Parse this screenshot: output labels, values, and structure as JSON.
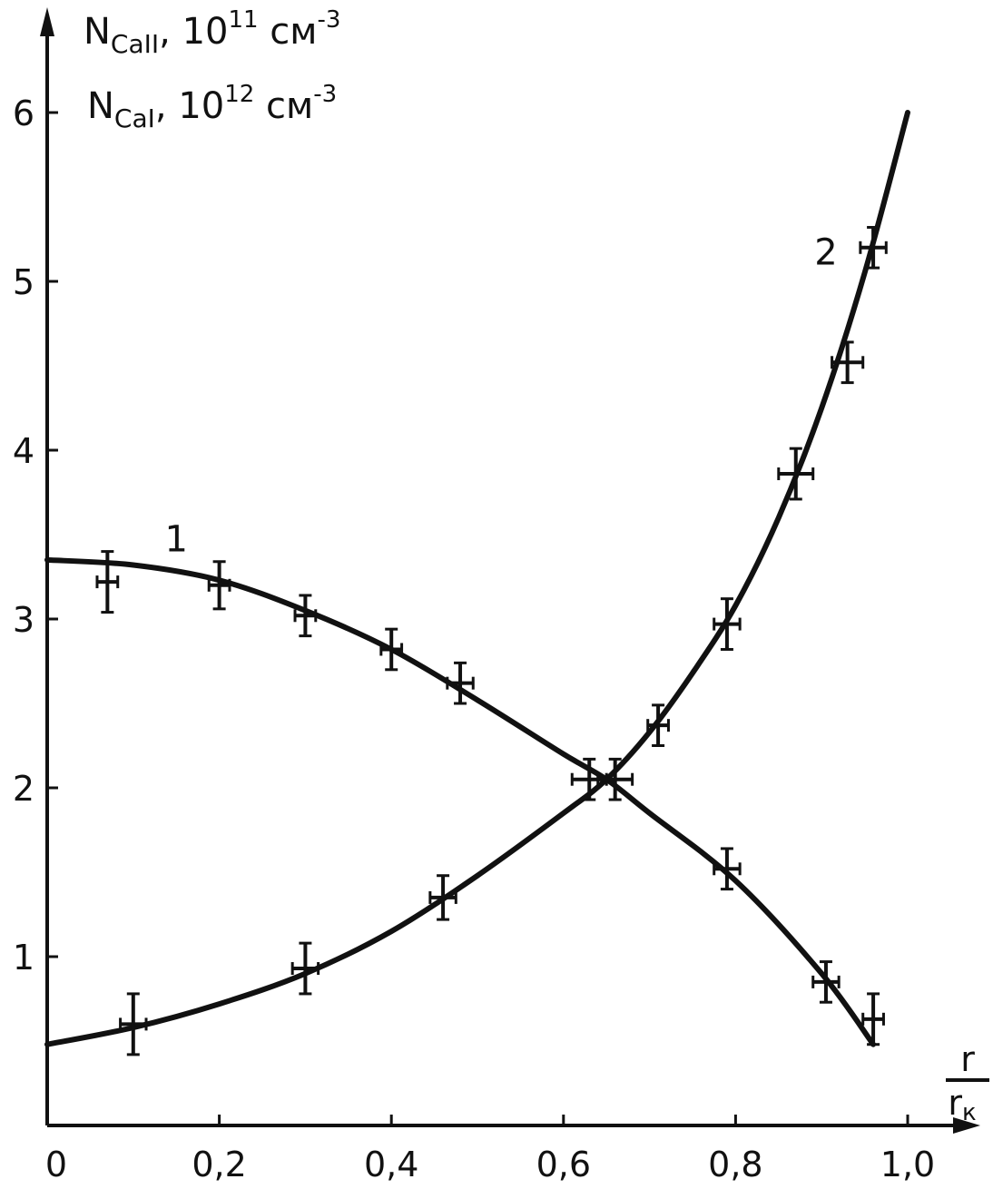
{
  "chart_data": {
    "type": "line",
    "title": "",
    "ylabel_lines": [
      {
        "main": "N",
        "sub": "CaII",
        "sep": ", ",
        "base": "10",
        "exp1": "11",
        "unit": " см",
        "exp2": "-3"
      },
      {
        "main": "N",
        "sub": "CaI",
        "sep": ", ",
        "base": "10",
        "exp1": "12",
        "unit": " см",
        "exp2": "-3"
      }
    ],
    "xlabel": {
      "numerator": "r",
      "denominator": "r",
      "denominator_sub": "к"
    },
    "xlim": [
      0,
      1.08
    ],
    "ylim": [
      0,
      6.6
    ],
    "x_ticks": [
      {
        "value": 0,
        "label": "0"
      },
      {
        "value": 0.2,
        "label": "0,2"
      },
      {
        "value": 0.4,
        "label": "0,4"
      },
      {
        "value": 0.6,
        "label": "0,6"
      },
      {
        "value": 0.8,
        "label": "0,8"
      },
      {
        "value": 1.0,
        "label": "1,0"
      }
    ],
    "y_ticks": [
      {
        "value": 1,
        "label": "1"
      },
      {
        "value": 2,
        "label": "2"
      },
      {
        "value": 3,
        "label": "3"
      },
      {
        "value": 4,
        "label": "4"
      },
      {
        "value": 5,
        "label": "5"
      },
      {
        "value": 6,
        "label": "6"
      }
    ],
    "grid": false,
    "series": [
      {
        "name": "1",
        "label_at": [
          0.15,
          3.4
        ],
        "curve": [
          [
            0,
            3.35
          ],
          [
            0.1,
            3.32
          ],
          [
            0.2,
            3.23
          ],
          [
            0.3,
            3.05
          ],
          [
            0.4,
            2.82
          ],
          [
            0.5,
            2.52
          ],
          [
            0.6,
            2.2
          ],
          [
            0.65,
            2.05
          ],
          [
            0.7,
            1.85
          ],
          [
            0.8,
            1.45
          ],
          [
            0.9,
            0.9
          ],
          [
            0.96,
            0.48
          ]
        ],
        "points": [
          {
            "x": 0.07,
            "y": 3.22,
            "xerr": 0.012,
            "yerr": 0.18
          },
          {
            "x": 0.2,
            "y": 3.2,
            "xerr": 0.012,
            "yerr": 0.14
          },
          {
            "x": 0.3,
            "y": 3.02,
            "xerr": 0.012,
            "yerr": 0.12
          },
          {
            "x": 0.4,
            "y": 2.82,
            "xerr": 0.012,
            "yerr": 0.12
          },
          {
            "x": 0.48,
            "y": 2.62,
            "xerr": 0.015,
            "yerr": 0.12
          },
          {
            "x": 0.63,
            "y": 2.05,
            "xerr": 0.02,
            "yerr": 0.12
          },
          {
            "x": 0.79,
            "y": 1.52,
            "xerr": 0.015,
            "yerr": 0.12
          },
          {
            "x": 0.905,
            "y": 0.85,
            "xerr": 0.015,
            "yerr": 0.12
          },
          {
            "x": 0.96,
            "y": 0.63,
            "xerr": 0.012,
            "yerr": 0.15
          }
        ]
      },
      {
        "name": "2",
        "label_at": [
          0.905,
          5.1
        ],
        "curve": [
          [
            0,
            0.48
          ],
          [
            0.1,
            0.58
          ],
          [
            0.2,
            0.72
          ],
          [
            0.3,
            0.9
          ],
          [
            0.4,
            1.15
          ],
          [
            0.5,
            1.48
          ],
          [
            0.6,
            1.85
          ],
          [
            0.65,
            2.05
          ],
          [
            0.7,
            2.33
          ],
          [
            0.75,
            2.68
          ],
          [
            0.8,
            3.08
          ],
          [
            0.85,
            3.6
          ],
          [
            0.9,
            4.25
          ],
          [
            0.95,
            5.05
          ],
          [
            1.0,
            6.0
          ]
        ],
        "points": [
          {
            "x": 0.1,
            "y": 0.6,
            "xerr": 0.015,
            "yerr": 0.18
          },
          {
            "x": 0.3,
            "y": 0.93,
            "xerr": 0.015,
            "yerr": 0.15
          },
          {
            "x": 0.46,
            "y": 1.35,
            "xerr": 0.015,
            "yerr": 0.13
          },
          {
            "x": 0.66,
            "y": 2.05,
            "xerr": 0.02,
            "yerr": 0.12
          },
          {
            "x": 0.71,
            "y": 2.37,
            "xerr": 0.012,
            "yerr": 0.12
          },
          {
            "x": 0.79,
            "y": 2.97,
            "xerr": 0.015,
            "yerr": 0.15
          },
          {
            "x": 0.87,
            "y": 3.86,
            "xerr": 0.02,
            "yerr": 0.15
          },
          {
            "x": 0.93,
            "y": 4.52,
            "xerr": 0.018,
            "yerr": 0.12
          },
          {
            "x": 0.96,
            "y": 5.2,
            "xerr": 0.015,
            "yerr": 0.12
          }
        ]
      }
    ]
  }
}
